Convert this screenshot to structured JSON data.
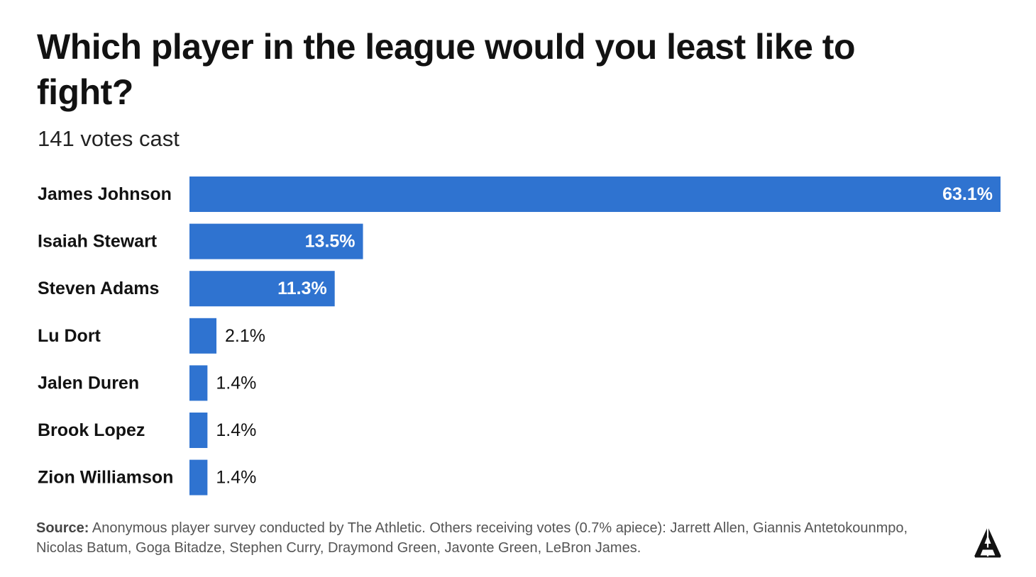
{
  "title": "Which player in the league would you least like to fight?",
  "subtitle": "141 votes cast",
  "source": {
    "label": "Source:",
    "text": "Anonymous player survey conducted by The Athletic. Others receiving votes (0.7% apiece): Jarrett Allen, Giannis Antetokounmpo, Nicolas Batum, Goga Bitadze, Stephen Curry, Draymond Green, Javonte Green, LeBron James."
  },
  "logo": {
    "icon": "the-athletic-logo-icon",
    "text": "A"
  },
  "colors": {
    "bar": "#2f73d0",
    "text": "#121212"
  },
  "chart_data": {
    "type": "bar",
    "orientation": "horizontal",
    "categories": [
      "James Johnson",
      "Isaiah Stewart",
      "Steven Adams",
      "Lu Dort",
      "Jalen Duren",
      "Brook Lopez",
      "Zion Williamson"
    ],
    "values": [
      63.1,
      13.5,
      11.3,
      2.1,
      1.4,
      1.4,
      1.4
    ],
    "value_labels": [
      "63.1%",
      "13.5%",
      "11.3%",
      "2.1%",
      "1.4%",
      "1.4%",
      "1.4%"
    ],
    "unit": "%",
    "xlim": [
      0,
      63.1
    ],
    "grid": false,
    "legend": "none"
  }
}
